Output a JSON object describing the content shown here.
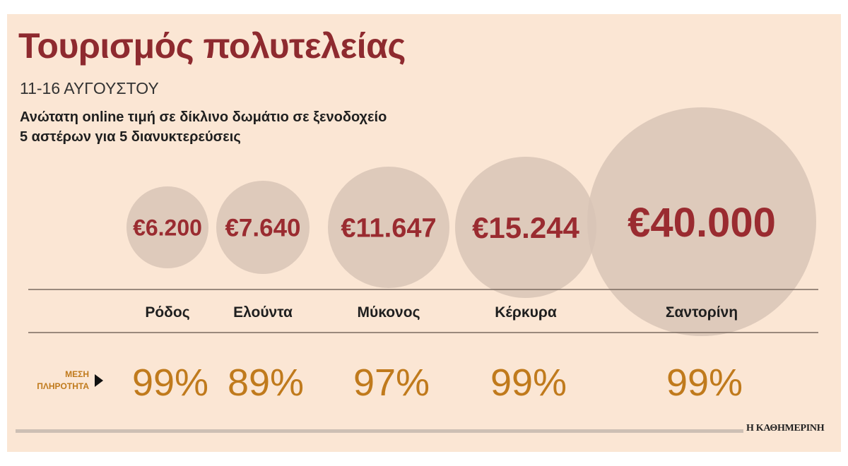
{
  "title": "Τουρισμός πολυτελείας",
  "subtitle": "11-16 ΑΥΓΟΥΣΤΟΥ",
  "description": [
    "Ανώτατη online τιμή σε δίκλινο δωμάτιο σε ξενοδοχείο",
    "5 αστέρων για 5 διανυκτερεύσεις"
  ],
  "occupancy_label": [
    "ΜΕΣΗ",
    "ΠΛΗΡΟΤΗΤΑ"
  ],
  "source": "Η ΚΑΘΗΜΕΡΙΝΗ",
  "colors": {
    "background": "#fbe6d4",
    "bubble": "#d8c4b6",
    "price": "#9a2b30",
    "occupancy": "#c07a1c",
    "label_accent": "#c07a1c"
  },
  "chart_data": {
    "type": "bubble",
    "categories": [
      "Ρόδος",
      "Ελούντα",
      "Μύκονος",
      "Κέρκυρα",
      "Σαντορίνη"
    ],
    "price_labels": [
      "€6.200",
      "€7.640",
      "€11.647",
      "€15.244",
      "€40.000"
    ],
    "values": [
      6200,
      7640,
      11647,
      15244,
      40000
    ],
    "occupancy_labels": [
      "99%",
      "89%",
      "97%",
      "99%",
      "99%"
    ],
    "occupancy": [
      99,
      89,
      97,
      99,
      99
    ]
  }
}
